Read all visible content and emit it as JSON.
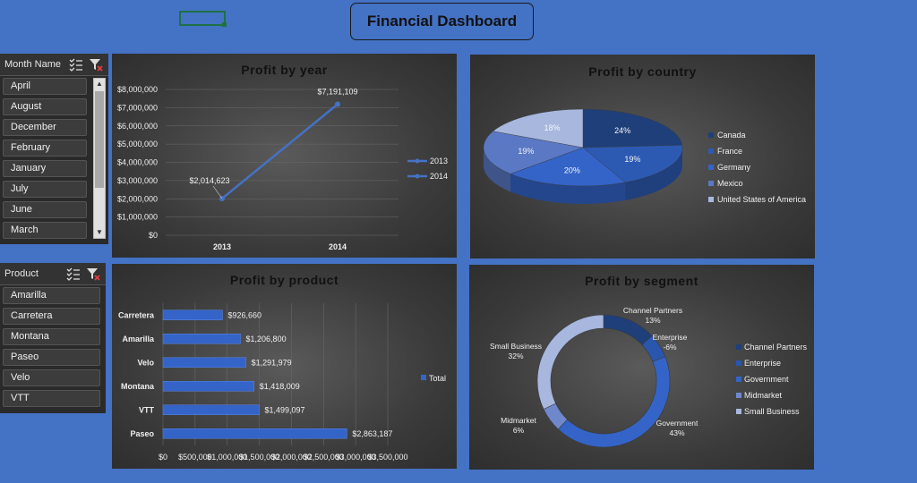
{
  "header": {
    "title": "Financial Dashboard"
  },
  "slicers": {
    "month": {
      "label": "Month Name",
      "items": [
        "April",
        "August",
        "December",
        "February",
        "January",
        "July",
        "June",
        "March"
      ]
    },
    "product": {
      "label": "Product",
      "items": [
        "Amarilla",
        "Carretera",
        "Montana",
        "Paseo",
        "Velo",
        "VTT"
      ]
    }
  },
  "chart_data": [
    {
      "id": "profit-by-year",
      "type": "line",
      "title": "Profit by year",
      "categories": [
        "2013",
        "2014"
      ],
      "values": [
        2014623,
        7191109
      ],
      "data_labels": [
        "$2,014,623",
        "$7,191,109"
      ],
      "y_ticks": [
        "$0",
        "$1,000,000",
        "$2,000,000",
        "$3,000,000",
        "$4,000,000",
        "$5,000,000",
        "$6,000,000",
        "$7,000,000",
        "$8,000,000"
      ],
      "ylim": [
        0,
        8000000
      ],
      "legend": [
        "2013",
        "2014"
      ],
      "legend_position": "right",
      "grid": true
    },
    {
      "id": "profit-by-country",
      "type": "pie",
      "title": "Profit by country",
      "labels": [
        "Canada",
        "France",
        "Germany",
        "Mexico",
        "United States of America"
      ],
      "values": [
        24,
        19,
        20,
        19,
        18
      ],
      "data_labels": [
        "24%",
        "19%",
        "20%",
        "19%",
        "18%"
      ],
      "colors": [
        "#1f3f7a",
        "#2c5ab3",
        "#3464c8",
        "#5a78c4",
        "#a7b7de"
      ],
      "legend_position": "right"
    },
    {
      "id": "profit-by-product",
      "type": "bar",
      "orientation": "horizontal",
      "title": "Profit by product",
      "categories": [
        "Carretera",
        "Amarilla",
        "Velo",
        "Montana",
        "VTT",
        "Paseo"
      ],
      "values": [
        926660,
        1206800,
        1291979,
        1418009,
        1499097,
        2863187
      ],
      "data_labels": [
        "$926,660",
        "$1,206,800",
        "$1,291,979",
        "$1,418,009",
        "$1,499,097",
        "$2,863,187"
      ],
      "x_ticks": [
        "$0",
        "$500,000",
        "$1,000,000",
        "$1,500,000",
        "$2,000,000",
        "$2,500,000",
        "$3,000,000",
        "$3,500,000"
      ],
      "xlim": [
        0,
        3500000
      ],
      "legend": [
        "Total"
      ],
      "legend_position": "right",
      "grid": true
    },
    {
      "id": "profit-by-segment",
      "type": "pie",
      "subtype": "doughnut",
      "title": "Profit by segment",
      "labels": [
        "Channel Partners",
        "Enterprise",
        "Government",
        "Midmarket",
        "Small Business"
      ],
      "values": [
        13,
        -6,
        43,
        6,
        32
      ],
      "data_labels": [
        "13%",
        "-6%",
        "43%",
        "6%",
        "32%"
      ],
      "colors": [
        "#1f3f7a",
        "#2a56ad",
        "#3464c8",
        "#6f88cc",
        "#a7b7de"
      ],
      "legend_position": "right"
    }
  ]
}
